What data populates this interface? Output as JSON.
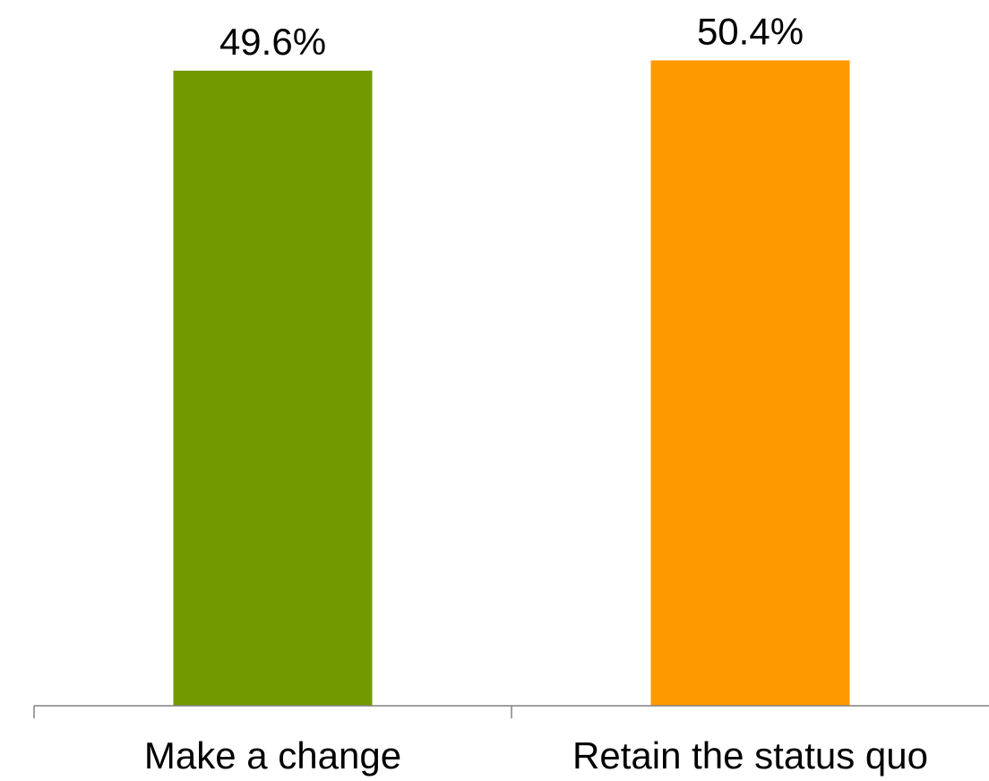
{
  "chart_data": {
    "type": "bar",
    "categories": [
      "Make a change",
      "Retain the status quo"
    ],
    "values": [
      49.6,
      50.4
    ],
    "value_labels": [
      "49.6%",
      "50.4%"
    ],
    "colors": [
      "#739900",
      "#FF9900"
    ],
    "ylim": [
      0,
      51.2
    ],
    "grid": false,
    "legend": "none",
    "title": "",
    "xlabel": "",
    "ylabel": ""
  }
}
